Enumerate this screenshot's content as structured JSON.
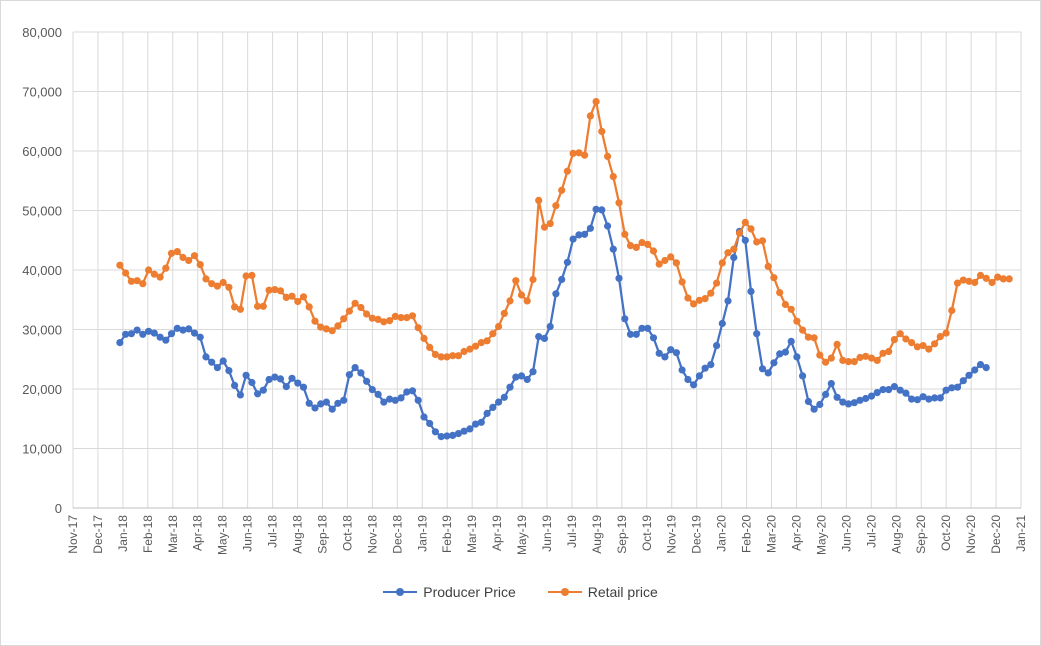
{
  "chart_data": {
    "type": "line",
    "title": "",
    "xlabel": "",
    "ylabel": "",
    "ylim": [
      0,
      80000
    ],
    "yticks": [
      "0",
      "10,000",
      "20,000",
      "30,000",
      "40,000",
      "50,000",
      "60,000",
      "70,000",
      "80,000"
    ],
    "xticks": [
      "Nov-17",
      "Dec-17",
      "Jan-18",
      "Feb-18",
      "Mar-18",
      "Apr-18",
      "May-18",
      "Jun-18",
      "Jul-18",
      "Aug-18",
      "Sep-18",
      "Oct-18",
      "Nov-18",
      "Dec-18",
      "Jan-19",
      "Feb-19",
      "Mar-19",
      "Apr-19",
      "May-19",
      "Jun-19",
      "Jul-19",
      "Aug-19",
      "Sep-19",
      "Oct-19",
      "Nov-19",
      "Dec-19",
      "Jan-20",
      "Feb-20",
      "Mar-20",
      "Apr-20",
      "May-20",
      "Jun-20",
      "Jul-20",
      "Aug-20",
      "Sep-20",
      "Oct-20",
      "Nov-20",
      "Dec-20",
      "Jan-21"
    ],
    "grid": true,
    "legend_position": "bottom",
    "x_start_label": "Jan-18",
    "x_step_label": "weekly",
    "series": [
      {
        "name": "Producer Price",
        "color": "#4472c4",
        "values": [
          27800,
          29200,
          29300,
          29900,
          29200,
          29700,
          29400,
          28700,
          28200,
          29300,
          30200,
          29900,
          30100,
          29400,
          28700,
          25400,
          24500,
          23600,
          24700,
          23100,
          20600,
          19000,
          22300,
          21100,
          19200,
          19800,
          21600,
          22000,
          21700,
          20400,
          21800,
          21000,
          20300,
          17600,
          16800,
          17500,
          17800,
          16600,
          17600,
          18100,
          22400,
          23600,
          22700,
          21300,
          19900,
          19100,
          17800,
          18300,
          18100,
          18500,
          19500,
          19700,
          18100,
          15300,
          14200,
          12800,
          12000,
          12100,
          12200,
          12500,
          12900,
          13300,
          14100,
          14400,
          15900,
          16900,
          17800,
          18600,
          20300,
          22000,
          22200,
          21600,
          22900,
          28800,
          28500,
          30500,
          36000,
          38400,
          41300,
          45200,
          45900,
          46000,
          47000,
          50200,
          50100,
          47400,
          43500,
          38600,
          31800,
          29200,
          29200,
          30200,
          30200,
          28600,
          26000,
          25400,
          26600,
          26100,
          23200,
          21600,
          20700,
          22200,
          23500,
          24100,
          27300,
          31000,
          34800,
          42100,
          46500,
          45000,
          36400,
          29300,
          23400,
          22700,
          24400,
          25900,
          26200,
          28000,
          25400,
          22200,
          17900,
          16600,
          17400,
          19100,
          20900,
          18600,
          17800,
          17500,
          17700,
          18100,
          18400,
          18800,
          19400,
          19900,
          19900,
          20400,
          19800,
          19300,
          18300,
          18200,
          18700,
          18300,
          18500,
          18500,
          19800,
          20200,
          20300,
          21400,
          22300,
          23200,
          24100,
          23600
        ]
      },
      {
        "name": "Retail price",
        "color": "#ed7d31",
        "values": [
          40800,
          39500,
          38100,
          38200,
          37700,
          40000,
          39300,
          38800,
          40300,
          42800,
          43100,
          42100,
          41600,
          42400,
          40900,
          38500,
          37700,
          37300,
          37900,
          37100,
          33800,
          33400,
          39000,
          39100,
          33900,
          33900,
          36600,
          36700,
          36500,
          35400,
          35600,
          34700,
          35500,
          33800,
          31400,
          30400,
          30100,
          29800,
          30600,
          31800,
          33100,
          34400,
          33700,
          32600,
          31900,
          31700,
          31300,
          31500,
          32200,
          32000,
          32000,
          32300,
          30300,
          28500,
          27000,
          25800,
          25400,
          25400,
          25600,
          25600,
          26300,
          26700,
          27200,
          27800,
          28100,
          29300,
          30500,
          32700,
          34800,
          38200,
          35800,
          34800,
          38400,
          51700,
          47200,
          47800,
          50800,
          53400,
          56600,
          59600,
          59700,
          59300,
          65900,
          68300,
          63300,
          59100,
          55700,
          51300,
          46000,
          44100,
          43800,
          44600,
          44300,
          43200,
          41000,
          41600,
          42200,
          41200,
          38000,
          35300,
          34300,
          34900,
          35200,
          36100,
          37800,
          41200,
          42900,
          43500,
          46200,
          48000,
          46900,
          44700,
          44900,
          40600,
          38700,
          36200,
          34200,
          33400,
          31400,
          29900,
          28700,
          28600,
          25700,
          24500,
          25200,
          27500,
          24800,
          24600,
          24600,
          25300,
          25500,
          25200,
          24800,
          26000,
          26300,
          28300,
          29300,
          28400,
          27800,
          27100,
          27300,
          26700,
          27600,
          28800,
          29400,
          33200,
          37800,
          38300,
          38100,
          37900,
          39100,
          38600,
          37900,
          38800,
          38500,
          38500
        ]
      }
    ]
  }
}
